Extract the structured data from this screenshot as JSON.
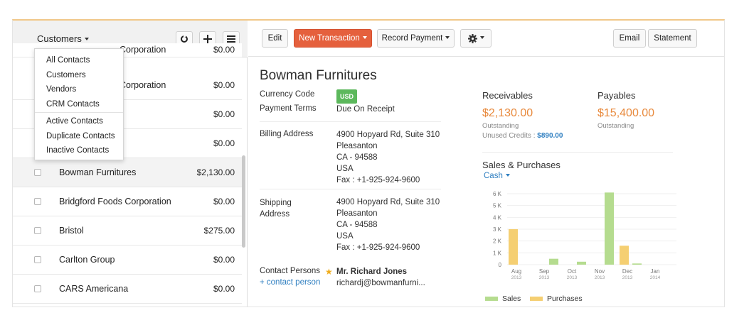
{
  "colors": {
    "accent": "#e5603d",
    "link": "#2f7fc1",
    "amount": "#e8893c",
    "sales": "#b5dc8f",
    "purchases": "#f5cf72",
    "badge": "#5cb85c"
  },
  "list": {
    "title": "Customers",
    "buttons": [
      {
        "icon": "refresh-icon"
      },
      {
        "icon": "plus-icon"
      },
      {
        "icon": "menu-icon"
      }
    ],
    "rows": [
      {
        "name": "Corporation",
        "amount": "$0.00",
        "hidden_checkbox": true
      },
      {
        "name": "Corporation",
        "amount": "$0.00"
      },
      {
        "name": "",
        "amount": "$0.00"
      },
      {
        "name": "",
        "amount": "$0.00"
      },
      {
        "name": "Bowman Furnitures",
        "amount": "$2,130.00",
        "selected": true
      },
      {
        "name": "Bridgford Foods Corporation",
        "amount": "$0.00"
      },
      {
        "name": "Bristol",
        "amount": "$275.00"
      },
      {
        "name": "Carlton Group",
        "amount": "$0.00"
      },
      {
        "name": "CARS Americana",
        "amount": "$0.00"
      }
    ],
    "dropdown": {
      "group1": [
        "All Contacts",
        "Customers",
        "Vendors",
        "CRM Contacts"
      ],
      "group2": [
        "Active Contacts",
        "Duplicate Contacts",
        "Inactive Contacts"
      ]
    }
  },
  "toolbar": {
    "edit": "Edit",
    "new_transaction": "New Transaction",
    "record_payment": "Record Payment",
    "email": "Email",
    "statement": "Statement"
  },
  "contact": {
    "name": "Bowman Furnitures",
    "currency_label": "Currency Code",
    "currency": "USD",
    "terms_label": "Payment Terms",
    "terms": "Due On Receipt",
    "billing_label": "Billing Address",
    "billing": [
      "4900 Hopyard Rd, Suite 310",
      "Pleasanton",
      "CA - 94588",
      "USA",
      "Fax : +1-925-924-9600"
    ],
    "shipping_label_1": "Shipping",
    "shipping_label_2": "Address",
    "shipping": [
      "4900 Hopyard Rd, Suite 310",
      "Pleasanton",
      "CA - 94588",
      "USA",
      "Fax : +1-925-924-9600"
    ],
    "persons_label": "Contact Persons",
    "add_person": "+ contact person",
    "person_name": "Mr. Richard Jones",
    "person_email": "richardj@bowmanfurni..."
  },
  "finance": {
    "receivables_label": "Receivables",
    "receivables": "$2,130.00",
    "receivables_sub": "Outstanding",
    "credits_label": "Unused Credits :",
    "credits": "$890.00",
    "payables_label": "Payables",
    "payables": "$15,400.00",
    "payables_sub": "Outstanding"
  },
  "chart": {
    "title": "Sales & Purchases",
    "selector": "Cash",
    "legend_sales": "Sales",
    "legend_purchases": "Purchases"
  },
  "chart_data": {
    "type": "bar",
    "categories": [
      "Aug",
      "Sep",
      "Oct",
      "Nov",
      "Dec",
      "Jan"
    ],
    "category_years": [
      "2013",
      "2013",
      "2013",
      "2013",
      "2013",
      "2014"
    ],
    "series": [
      {
        "name": "Sales",
        "values": [
          0,
          500,
          250,
          6100,
          100,
          0
        ]
      },
      {
        "name": "Purchases",
        "values": [
          3000,
          0,
          0,
          0,
          1600,
          0
        ]
      }
    ],
    "yticks": [
      "0",
      "1 K",
      "2 K",
      "3 K",
      "4 K",
      "5 K",
      "6 K"
    ],
    "ylim": [
      0,
      6000
    ]
  }
}
